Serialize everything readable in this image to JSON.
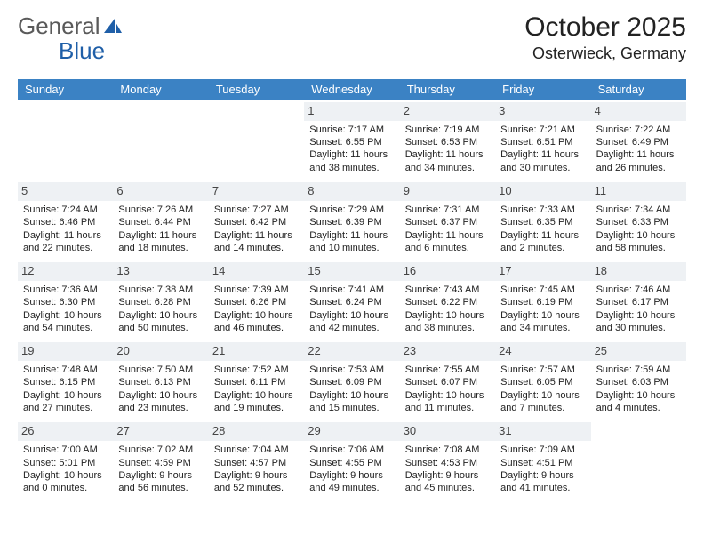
{
  "brand": {
    "part1": "General",
    "part2": "Blue"
  },
  "colors": {
    "header_bg": "#3b82c4",
    "header_text": "#ffffff",
    "border": "#3b6a9a",
    "daynum_bg": "#eef1f4",
    "text": "#222222",
    "logo_gray": "#5a5a5a",
    "logo_blue": "#1f5fa8"
  },
  "title": "October 2025",
  "location": "Osterwieck, Germany",
  "weekdays": [
    "Sunday",
    "Monday",
    "Tuesday",
    "Wednesday",
    "Thursday",
    "Friday",
    "Saturday"
  ],
  "grid": {
    "leading_blanks": 3,
    "days": [
      {
        "n": "1",
        "sunrise": "Sunrise: 7:17 AM",
        "sunset": "Sunset: 6:55 PM",
        "daylight": "Daylight: 11 hours and 38 minutes."
      },
      {
        "n": "2",
        "sunrise": "Sunrise: 7:19 AM",
        "sunset": "Sunset: 6:53 PM",
        "daylight": "Daylight: 11 hours and 34 minutes."
      },
      {
        "n": "3",
        "sunrise": "Sunrise: 7:21 AM",
        "sunset": "Sunset: 6:51 PM",
        "daylight": "Daylight: 11 hours and 30 minutes."
      },
      {
        "n": "4",
        "sunrise": "Sunrise: 7:22 AM",
        "sunset": "Sunset: 6:49 PM",
        "daylight": "Daylight: 11 hours and 26 minutes."
      },
      {
        "n": "5",
        "sunrise": "Sunrise: 7:24 AM",
        "sunset": "Sunset: 6:46 PM",
        "daylight": "Daylight: 11 hours and 22 minutes."
      },
      {
        "n": "6",
        "sunrise": "Sunrise: 7:26 AM",
        "sunset": "Sunset: 6:44 PM",
        "daylight": "Daylight: 11 hours and 18 minutes."
      },
      {
        "n": "7",
        "sunrise": "Sunrise: 7:27 AM",
        "sunset": "Sunset: 6:42 PM",
        "daylight": "Daylight: 11 hours and 14 minutes."
      },
      {
        "n": "8",
        "sunrise": "Sunrise: 7:29 AM",
        "sunset": "Sunset: 6:39 PM",
        "daylight": "Daylight: 11 hours and 10 minutes."
      },
      {
        "n": "9",
        "sunrise": "Sunrise: 7:31 AM",
        "sunset": "Sunset: 6:37 PM",
        "daylight": "Daylight: 11 hours and 6 minutes."
      },
      {
        "n": "10",
        "sunrise": "Sunrise: 7:33 AM",
        "sunset": "Sunset: 6:35 PM",
        "daylight": "Daylight: 11 hours and 2 minutes."
      },
      {
        "n": "11",
        "sunrise": "Sunrise: 7:34 AM",
        "sunset": "Sunset: 6:33 PM",
        "daylight": "Daylight: 10 hours and 58 minutes."
      },
      {
        "n": "12",
        "sunrise": "Sunrise: 7:36 AM",
        "sunset": "Sunset: 6:30 PM",
        "daylight": "Daylight: 10 hours and 54 minutes."
      },
      {
        "n": "13",
        "sunrise": "Sunrise: 7:38 AM",
        "sunset": "Sunset: 6:28 PM",
        "daylight": "Daylight: 10 hours and 50 minutes."
      },
      {
        "n": "14",
        "sunrise": "Sunrise: 7:39 AM",
        "sunset": "Sunset: 6:26 PM",
        "daylight": "Daylight: 10 hours and 46 minutes."
      },
      {
        "n": "15",
        "sunrise": "Sunrise: 7:41 AM",
        "sunset": "Sunset: 6:24 PM",
        "daylight": "Daylight: 10 hours and 42 minutes."
      },
      {
        "n": "16",
        "sunrise": "Sunrise: 7:43 AM",
        "sunset": "Sunset: 6:22 PM",
        "daylight": "Daylight: 10 hours and 38 minutes."
      },
      {
        "n": "17",
        "sunrise": "Sunrise: 7:45 AM",
        "sunset": "Sunset: 6:19 PM",
        "daylight": "Daylight: 10 hours and 34 minutes."
      },
      {
        "n": "18",
        "sunrise": "Sunrise: 7:46 AM",
        "sunset": "Sunset: 6:17 PM",
        "daylight": "Daylight: 10 hours and 30 minutes."
      },
      {
        "n": "19",
        "sunrise": "Sunrise: 7:48 AM",
        "sunset": "Sunset: 6:15 PM",
        "daylight": "Daylight: 10 hours and 27 minutes."
      },
      {
        "n": "20",
        "sunrise": "Sunrise: 7:50 AM",
        "sunset": "Sunset: 6:13 PM",
        "daylight": "Daylight: 10 hours and 23 minutes."
      },
      {
        "n": "21",
        "sunrise": "Sunrise: 7:52 AM",
        "sunset": "Sunset: 6:11 PM",
        "daylight": "Daylight: 10 hours and 19 minutes."
      },
      {
        "n": "22",
        "sunrise": "Sunrise: 7:53 AM",
        "sunset": "Sunset: 6:09 PM",
        "daylight": "Daylight: 10 hours and 15 minutes."
      },
      {
        "n": "23",
        "sunrise": "Sunrise: 7:55 AM",
        "sunset": "Sunset: 6:07 PM",
        "daylight": "Daylight: 10 hours and 11 minutes."
      },
      {
        "n": "24",
        "sunrise": "Sunrise: 7:57 AM",
        "sunset": "Sunset: 6:05 PM",
        "daylight": "Daylight: 10 hours and 7 minutes."
      },
      {
        "n": "25",
        "sunrise": "Sunrise: 7:59 AM",
        "sunset": "Sunset: 6:03 PM",
        "daylight": "Daylight: 10 hours and 4 minutes."
      },
      {
        "n": "26",
        "sunrise": "Sunrise: 7:00 AM",
        "sunset": "Sunset: 5:01 PM",
        "daylight": "Daylight: 10 hours and 0 minutes."
      },
      {
        "n": "27",
        "sunrise": "Sunrise: 7:02 AM",
        "sunset": "Sunset: 4:59 PM",
        "daylight": "Daylight: 9 hours and 56 minutes."
      },
      {
        "n": "28",
        "sunrise": "Sunrise: 7:04 AM",
        "sunset": "Sunset: 4:57 PM",
        "daylight": "Daylight: 9 hours and 52 minutes."
      },
      {
        "n": "29",
        "sunrise": "Sunrise: 7:06 AM",
        "sunset": "Sunset: 4:55 PM",
        "daylight": "Daylight: 9 hours and 49 minutes."
      },
      {
        "n": "30",
        "sunrise": "Sunrise: 7:08 AM",
        "sunset": "Sunset: 4:53 PM",
        "daylight": "Daylight: 9 hours and 45 minutes."
      },
      {
        "n": "31",
        "sunrise": "Sunrise: 7:09 AM",
        "sunset": "Sunset: 4:51 PM",
        "daylight": "Daylight: 9 hours and 41 minutes."
      }
    ]
  }
}
